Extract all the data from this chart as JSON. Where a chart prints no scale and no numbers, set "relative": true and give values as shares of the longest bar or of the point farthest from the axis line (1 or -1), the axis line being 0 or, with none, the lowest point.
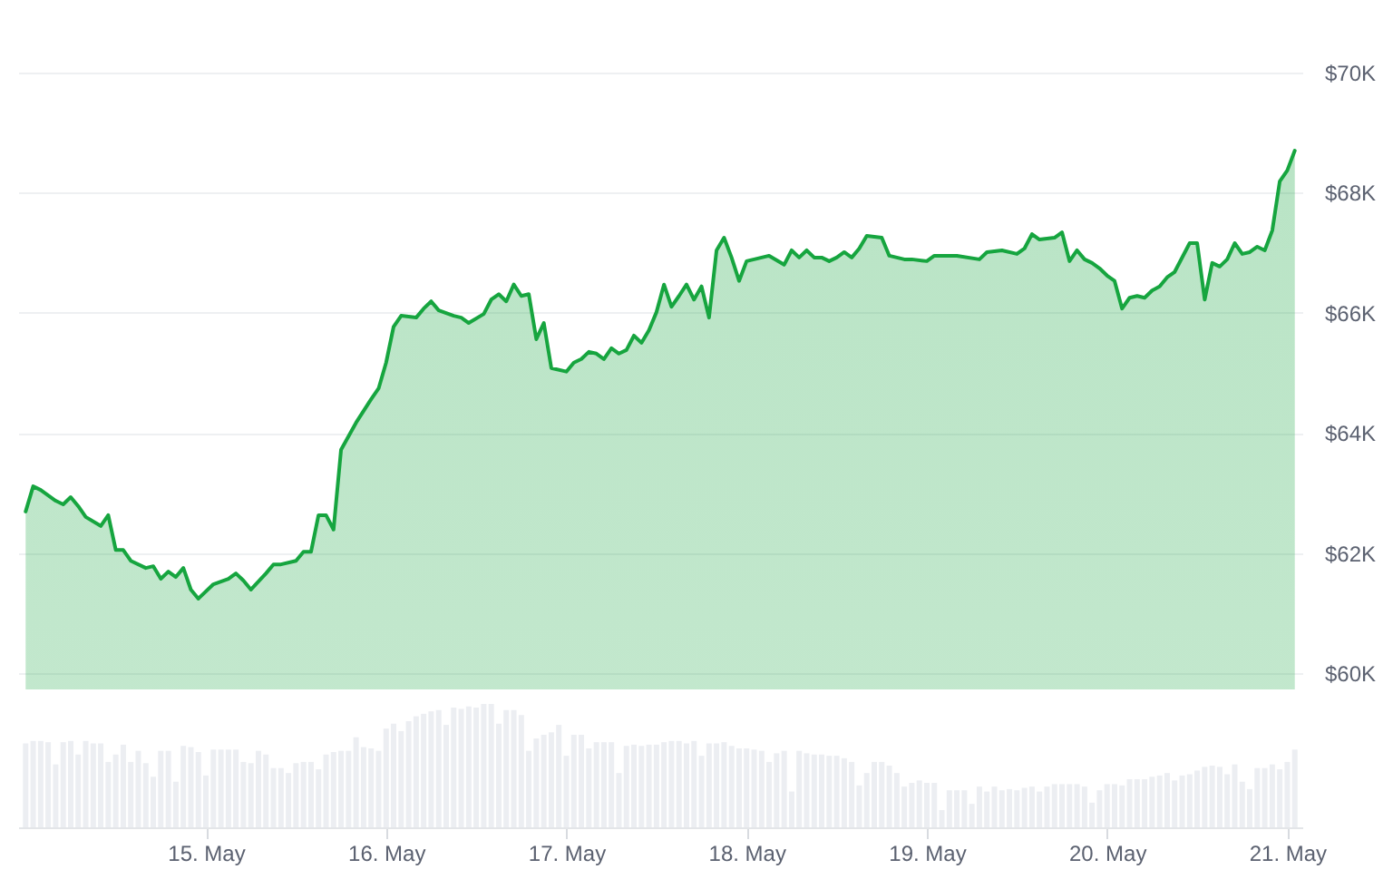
{
  "chart_data": [
    {
      "type": "area",
      "tick_labels": "y",
      "grid": "y",
      "xlim": [
        "--05-13T23:00",
        "--05-21T02:00"
      ],
      "ylim": [
        60000,
        70000
      ],
      "yticks": [
        {
          "value": 60000,
          "label": "$60K"
        },
        {
          "value": 62000,
          "label": "$62K"
        },
        {
          "value": 64000,
          "label": "$64K"
        },
        {
          "value": 66000,
          "label": "$66K"
        },
        {
          "value": 68000,
          "label": "$68K"
        },
        {
          "value": 70000,
          "label": "$70K"
        }
      ],
      "x": [
        "--05-14T00:00",
        "--05-14T01:00",
        "--05-14T02:00",
        "--05-14T04:00",
        "--05-14T05:00",
        "--05-14T06:00",
        "--05-14T07:00",
        "--05-14T08:00",
        "--05-14T10:00",
        "--05-14T11:00",
        "--05-14T12:00",
        "--05-14T13:00",
        "--05-14T14:00",
        "--05-14T16:00",
        "--05-14T17:00",
        "--05-14T18:00",
        "--05-14T19:00",
        "--05-14T20:00",
        "--05-14T21:00",
        "--05-14T22:00",
        "--05-14T23:00",
        "--05-15T01:00",
        "--05-15T03:00",
        "--05-15T04:00",
        "--05-15T05:00",
        "--05-15T06:00",
        "--05-15T08:00",
        "--05-15T09:00",
        "--05-15T10:00",
        "--05-15T12:00",
        "--05-15T13:00",
        "--05-15T14:00",
        "--05-15T15:00",
        "--05-15T16:00",
        "--05-15T17:00",
        "--05-15T18:00",
        "--05-15T20:00",
        "--05-15T22:00",
        "--05-15T23:00",
        "--05-16T00:00",
        "--05-16T01:00",
        "--05-16T02:00",
        "--05-16T04:00",
        "--05-16T05:00",
        "--05-16T06:00",
        "--05-16T07:00",
        "--05-16T09:00",
        "--05-16T10:00",
        "--05-16T11:00",
        "--05-16T13:00",
        "--05-16T14:00",
        "--05-16T15:00",
        "--05-16T16:00",
        "--05-16T17:00",
        "--05-16T18:00",
        "--05-16T19:00",
        "--05-16T20:00",
        "--05-16T21:00",
        "--05-16T22:00",
        "--05-17T00:00",
        "--05-17T01:00",
        "--05-17T02:00",
        "--05-17T03:00",
        "--05-17T04:00",
        "--05-17T05:00",
        "--05-17T06:00",
        "--05-17T07:00",
        "--05-17T08:00",
        "--05-17T09:00",
        "--05-17T10:00",
        "--05-17T11:00",
        "--05-17T12:00",
        "--05-17T13:00",
        "--05-17T14:00",
        "--05-17T15:00",
        "--05-17T16:00",
        "--05-17T17:00",
        "--05-17T18:00",
        "--05-17T19:00",
        "--05-17T20:00",
        "--05-17T21:00",
        "--05-17T22:00",
        "--05-17T23:00",
        "--05-18T00:00",
        "--05-18T02:00",
        "--05-18T03:00",
        "--05-18T05:00",
        "--05-18T06:00",
        "--05-18T07:00",
        "--05-18T08:00",
        "--05-18T09:00",
        "--05-18T10:00",
        "--05-18T11:00",
        "--05-18T12:00",
        "--05-18T13:00",
        "--05-18T14:00",
        "--05-18T15:00",
        "--05-18T16:00",
        "--05-18T18:00",
        "--05-18T19:00",
        "--05-18T20:00",
        "--05-18T21:00",
        "--05-18T22:00",
        "--05-19T00:00",
        "--05-19T01:00",
        "--05-19T02:00",
        "--05-19T04:00",
        "--05-19T07:00",
        "--05-19T08:00",
        "--05-19T10:00",
        "--05-19T12:00",
        "--05-19T13:00",
        "--05-19T14:00",
        "--05-19T15:00",
        "--05-19T17:00",
        "--05-19T18:00",
        "--05-19T19:00",
        "--05-19T20:00",
        "--05-19T21:00",
        "--05-19T22:00",
        "--05-19T23:00",
        "--05-20T00:00",
        "--05-20T01:00",
        "--05-20T02:00",
        "--05-20T03:00",
        "--05-20T04:00",
        "--05-20T05:00",
        "--05-20T06:00",
        "--05-20T07:00",
        "--05-20T08:00",
        "--05-20T09:00",
        "--05-20T11:00",
        "--05-20T12:00",
        "--05-20T13:00",
        "--05-20T14:00",
        "--05-20T15:00",
        "--05-20T16:00",
        "--05-20T17:00",
        "--05-20T18:00",
        "--05-20T19:00",
        "--05-20T20:00",
        "--05-20T21:00",
        "--05-20T22:00",
        "--05-20T23:00",
        "--05-21T00:00",
        "--05-21T01:00"
      ],
      "series": [
        {
          "color": "#16a53f",
          "values": [
            62690,
            63110,
            63050,
            62870,
            62810,
            62930,
            62780,
            62600,
            62450,
            62630,
            62050,
            62050,
            61870,
            61750,
            61780,
            61570,
            61690,
            61600,
            61750,
            61390,
            61240,
            61480,
            61570,
            61660,
            61540,
            61390,
            61660,
            61810,
            61810,
            61870,
            62020,
            62020,
            62630,
            62630,
            62390,
            63720,
            64170,
            64560,
            64740,
            65170,
            65770,
            65950,
            65920,
            66070,
            66190,
            66040,
            65950,
            65920,
            65830,
            65980,
            66220,
            66310,
            66190,
            66470,
            66280,
            66310,
            65560,
            65830,
            65080,
            65020,
            65170,
            65230,
            65350,
            65320,
            65230,
            65410,
            65320,
            65380,
            65620,
            65500,
            65710,
            66010,
            66470,
            66100,
            66280,
            66470,
            66220,
            66440,
            65920,
            67040,
            67250,
            66920,
            66530,
            66860,
            66920,
            66950,
            66800,
            67040,
            66920,
            67040,
            66920,
            66920,
            66860,
            66920,
            67010,
            66920,
            67070,
            67280,
            67250,
            66950,
            66920,
            66890,
            66890,
            66860,
            66950,
            66950,
            66950,
            66890,
            67010,
            67040,
            66980,
            67070,
            67310,
            67220,
            67250,
            67340,
            66860,
            67040,
            66890,
            66830,
            66740,
            66620,
            66530,
            66070,
            66250,
            66280,
            66250,
            66370,
            66440,
            66590,
            66680,
            67160,
            67160,
            66220,
            66830,
            66770,
            66890,
            67160,
            66980,
            67010,
            67100,
            67040,
            67370,
            68190,
            68370,
            68700
          ]
        }
      ]
    },
    {
      "type": "bar",
      "relative": true,
      "tick_labels": "x",
      "xlim": [
        "--05-13T23:00",
        "--05-21T02:00"
      ],
      "xticks": [
        {
          "value": "--05-15",
          "label": "15. May"
        },
        {
          "value": "--05-16",
          "label": "16. May"
        },
        {
          "value": "--05-17",
          "label": "17. May"
        },
        {
          "value": "--05-18",
          "label": "18. May"
        },
        {
          "value": "--05-19",
          "label": "19. May"
        },
        {
          "value": "--05-20",
          "label": "20. May"
        },
        {
          "value": "--05-21",
          "label": "21. May"
        }
      ],
      "x": [
        "--05-14T00:00",
        "--05-14T01:00",
        "--05-14T02:00",
        "--05-14T03:00",
        "--05-14T04:00",
        "--05-14T05:00",
        "--05-14T06:00",
        "--05-14T07:00",
        "--05-14T08:00",
        "--05-14T09:00",
        "--05-14T10:00",
        "--05-14T11:00",
        "--05-14T12:00",
        "--05-14T13:00",
        "--05-14T14:00",
        "--05-14T15:00",
        "--05-14T16:00",
        "--05-14T17:00",
        "--05-14T18:00",
        "--05-14T19:00",
        "--05-14T20:00",
        "--05-14T21:00",
        "--05-14T22:00",
        "--05-14T23:00",
        "--05-15T00:00",
        "--05-15T01:00",
        "--05-15T02:00",
        "--05-15T03:00",
        "--05-15T04:00",
        "--05-15T05:00",
        "--05-15T06:00",
        "--05-15T07:00",
        "--05-15T08:00",
        "--05-15T09:00",
        "--05-15T10:00",
        "--05-15T11:00",
        "--05-15T12:00",
        "--05-15T13:00",
        "--05-15T14:00",
        "--05-15T15:00",
        "--05-15T16:00",
        "--05-15T17:00",
        "--05-15T18:00",
        "--05-15T19:00",
        "--05-15T20:00",
        "--05-15T21:00",
        "--05-15T22:00",
        "--05-15T23:00",
        "--05-16T00:00",
        "--05-16T01:00",
        "--05-16T02:00",
        "--05-16T03:00",
        "--05-16T04:00",
        "--05-16T05:00",
        "--05-16T06:00",
        "--05-16T07:00",
        "--05-16T08:00",
        "--05-16T09:00",
        "--05-16T10:00",
        "--05-16T11:00",
        "--05-16T12:00",
        "--05-16T13:00",
        "--05-16T14:00",
        "--05-16T15:00",
        "--05-16T16:00",
        "--05-16T17:00",
        "--05-16T18:00",
        "--05-16T19:00",
        "--05-16T20:00",
        "--05-16T21:00",
        "--05-16T22:00",
        "--05-16T23:00",
        "--05-17T00:00",
        "--05-17T01:00",
        "--05-17T02:00",
        "--05-17T03:00",
        "--05-17T04:00",
        "--05-17T05:00",
        "--05-17T06:00",
        "--05-17T07:00",
        "--05-17T08:00",
        "--05-17T09:00",
        "--05-17T10:00",
        "--05-17T11:00",
        "--05-17T12:00",
        "--05-17T13:00",
        "--05-17T14:00",
        "--05-17T15:00",
        "--05-17T16:00",
        "--05-17T17:00",
        "--05-17T18:00",
        "--05-17T19:00",
        "--05-17T20:00",
        "--05-17T21:00",
        "--05-17T22:00",
        "--05-17T23:00",
        "--05-18T00:00",
        "--05-18T01:00",
        "--05-18T02:00",
        "--05-18T03:00",
        "--05-18T04:00",
        "--05-18T05:00",
        "--05-18T06:00",
        "--05-18T07:00",
        "--05-18T08:00",
        "--05-18T09:00",
        "--05-18T10:00",
        "--05-18T11:00",
        "--05-18T12:00",
        "--05-18T13:00",
        "--05-18T14:00",
        "--05-18T15:00",
        "--05-18T16:00",
        "--05-18T17:00",
        "--05-18T18:00",
        "--05-18T19:00",
        "--05-18T20:00",
        "--05-18T21:00",
        "--05-18T22:00",
        "--05-18T23:00",
        "--05-19T00:00",
        "--05-19T01:00",
        "--05-19T02:00",
        "--05-19T03:00",
        "--05-19T04:00",
        "--05-19T05:00",
        "--05-19T06:00",
        "--05-19T07:00",
        "--05-19T08:00",
        "--05-19T09:00",
        "--05-19T10:00",
        "--05-19T11:00",
        "--05-19T12:00",
        "--05-19T13:00",
        "--05-19T14:00",
        "--05-19T15:00",
        "--05-19T16:00",
        "--05-19T17:00",
        "--05-19T18:00",
        "--05-19T19:00",
        "--05-19T20:00",
        "--05-19T21:00",
        "--05-19T22:00",
        "--05-19T23:00",
        "--05-20T00:00",
        "--05-20T01:00",
        "--05-20T02:00",
        "--05-20T03:00",
        "--05-20T04:00",
        "--05-20T05:00",
        "--05-20T06:00",
        "--05-20T07:00",
        "--05-20T08:00",
        "--05-20T09:00",
        "--05-20T10:00",
        "--05-20T11:00",
        "--05-20T12:00",
        "--05-20T13:00",
        "--05-20T14:00",
        "--05-20T15:00",
        "--05-20T16:00",
        "--05-20T17:00",
        "--05-20T18:00",
        "--05-20T19:00",
        "--05-20T20:00",
        "--05-20T21:00",
        "--05-20T22:00",
        "--05-20T23:00",
        "--05-21T00:00",
        "--05-21T01:00"
      ],
      "series": [
        {
          "color": "#eceef2",
          "values": [
            0.68,
            0.7,
            0.7,
            0.69,
            0.51,
            0.69,
            0.7,
            0.59,
            0.7,
            0.68,
            0.68,
            0.53,
            0.59,
            0.67,
            0.53,
            0.62,
            0.52,
            0.41,
            0.62,
            0.62,
            0.37,
            0.66,
            0.65,
            0.61,
            0.42,
            0.63,
            0.63,
            0.63,
            0.63,
            0.53,
            0.52,
            0.62,
            0.59,
            0.48,
            0.48,
            0.44,
            0.52,
            0.53,
            0.53,
            0.47,
            0.59,
            0.61,
            0.62,
            0.62,
            0.73,
            0.65,
            0.64,
            0.62,
            0.8,
            0.84,
            0.78,
            0.86,
            0.9,
            0.92,
            0.94,
            0.95,
            0.83,
            0.97,
            0.96,
            0.98,
            0.97,
            1,
            1,
            0.84,
            0.95,
            0.95,
            0.91,
            0.62,
            0.72,
            0.75,
            0.77,
            0.83,
            0.58,
            0.75,
            0.75,
            0.64,
            0.69,
            0.69,
            0.69,
            0.44,
            0.66,
            0.67,
            0.66,
            0.67,
            0.67,
            0.69,
            0.7,
            0.7,
            0.68,
            0.7,
            0.58,
            0.68,
            0.68,
            0.69,
            0.66,
            0.64,
            0.64,
            0.63,
            0.62,
            0.53,
            0.6,
            0.62,
            0.29,
            0.62,
            0.6,
            0.59,
            0.59,
            0.58,
            0.58,
            0.56,
            0.53,
            0.34,
            0.44,
            0.53,
            0.53,
            0.5,
            0.44,
            0.33,
            0.36,
            0.38,
            0.36,
            0.36,
            0.14,
            0.3,
            0.3,
            0.3,
            0.19,
            0.33,
            0.29,
            0.33,
            0.3,
            0.31,
            0.3,
            0.32,
            0.33,
            0.29,
            0.33,
            0.35,
            0.35,
            0.35,
            0.35,
            0.33,
            0.2,
            0.3,
            0.35,
            0.35,
            0.34,
            0.39,
            0.39,
            0.39,
            0.41,
            0.42,
            0.44,
            0.38,
            0.42,
            0.43,
            0.46,
            0.49,
            0.5,
            0.49,
            0.43,
            0.51,
            0.37,
            0.31,
            0.48,
            0.48,
            0.51,
            0.47,
            0.53,
            0.63
          ]
        }
      ]
    }
  ]
}
